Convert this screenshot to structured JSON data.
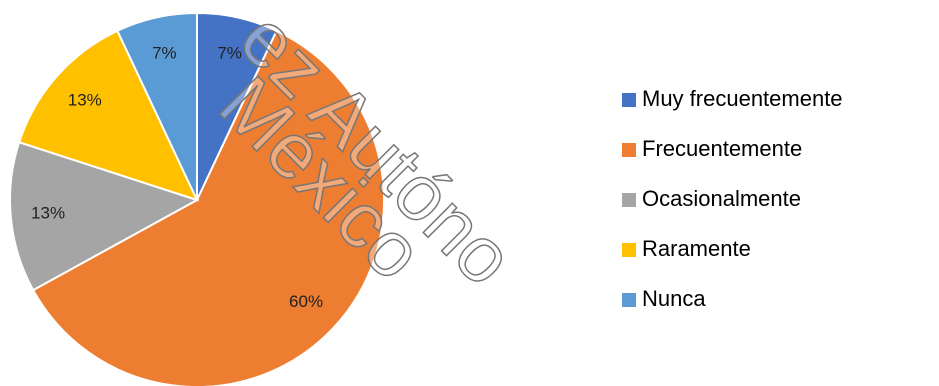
{
  "chart_data": {
    "type": "pie",
    "categories": [
      "Muy frecuentemente",
      "Frecuentemente",
      "Ocasionalmente",
      "Raramente",
      "Nunca"
    ],
    "values": [
      7,
      60,
      13,
      13,
      7
    ],
    "value_labels": [
      "7%",
      "60%",
      "13%",
      "13%",
      "7%"
    ],
    "colors": [
      "#4472c4",
      "#ed7d31",
      "#a5a5a5",
      "#ffc000",
      "#5b9bd5"
    ],
    "legend": "right",
    "watermark": [
      "ez Autóno",
      "México"
    ]
  }
}
